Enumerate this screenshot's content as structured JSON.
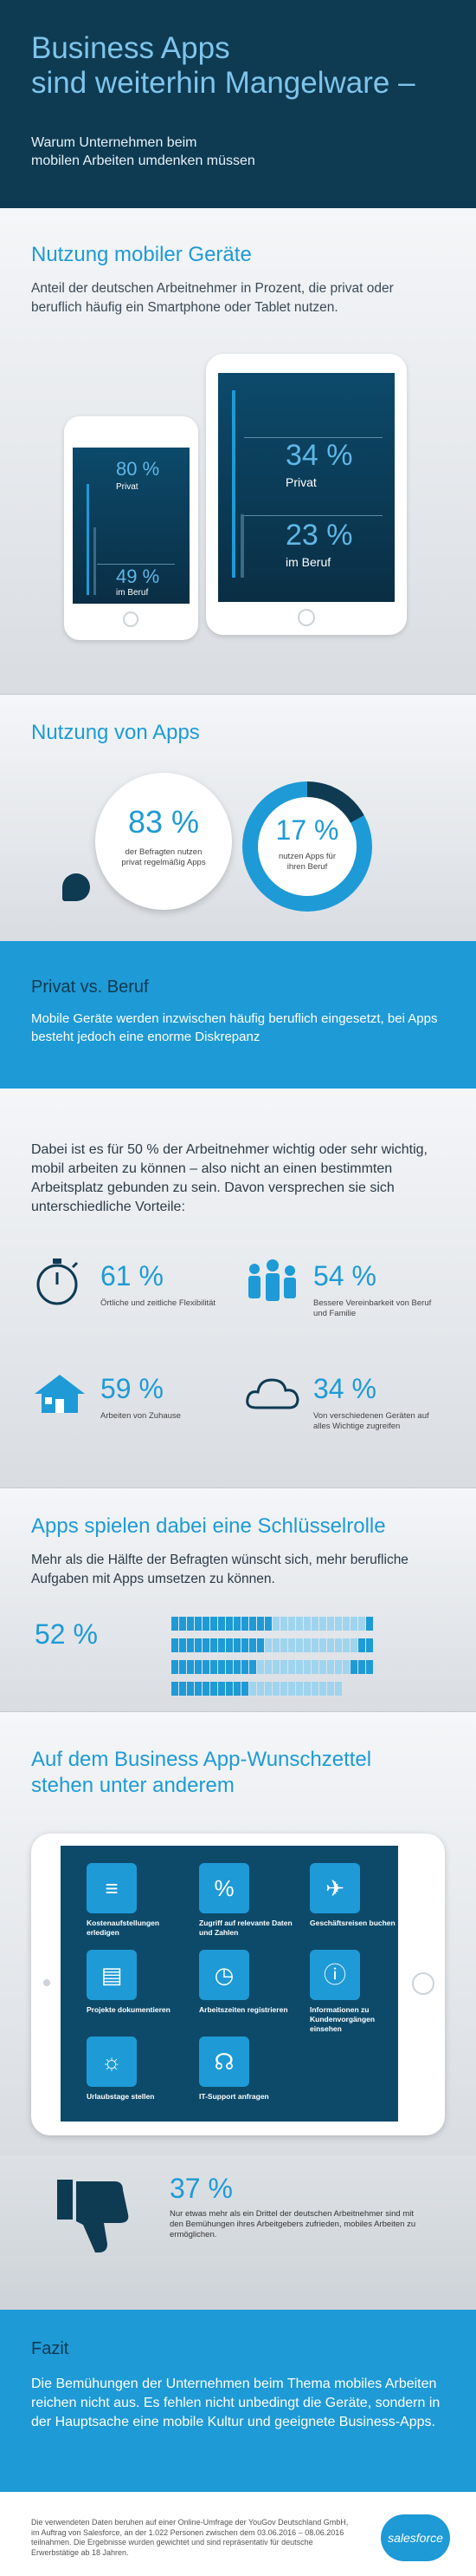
{
  "header": {
    "title_line1": "Business Apps",
    "title_line2": "sind weiterhin Mangelware –",
    "subtitle_line1": "Warum Unternehmen beim",
    "subtitle_line2": "mobilen Arbeiten umdenken müssen"
  },
  "devices": {
    "title": "Nutzung mobiler Geräte",
    "intro": "Anteil der deutschen Arbeitnehmer in Prozent, die privat oder beruflich häufig ein Smartphone oder Tablet nutzen.",
    "smartphone": {
      "privat_value": "80 %",
      "privat_label": "Privat",
      "privat": 0.8,
      "beruf_value": "49 %",
      "beruf_label": "im Beruf",
      "beruf": 0.49
    },
    "tablet": {
      "privat_value": "34 %",
      "privat_label": "Privat",
      "privat": 0.34,
      "beruf_value": "23 %",
      "beruf_label": "im Beruf",
      "beruf": 0.23
    }
  },
  "apps": {
    "title": "Nutzung von Apps",
    "private_value": "83 %",
    "private_text": "der Befragten nutzen privat regelmäßig Apps",
    "business_value": "17 %",
    "business_text": "nutzen Apps für ihren Beruf",
    "business_fraction": 0.17
  },
  "privat": {
    "title": "Privat vs. Beruf",
    "text": "Mobile Geräte werden inzwischen häufig beruflich eingesetzt, bei Apps besteht jedoch eine enorme Diskrepanz"
  },
  "benefits": {
    "intro": "Dabei ist es für 50 % der Arbeitnehmer wichtig oder sehr wichtig, mobil arbeiten zu können – also nicht an einen bestimmten Arbeitsplatz gebunden zu sein. Davon versprechen sie sich unterschiedliche Vorteile:",
    "items": [
      {
        "value": "61 %",
        "text": "Örtliche und zeitliche Flexibilität",
        "icon": "stopwatch-icon"
      },
      {
        "value": "54 %",
        "text": "Bessere Vereinbarkeit von Beruf und Familie",
        "icon": "family-icon"
      },
      {
        "value": "59 %",
        "text": "Arbeiten von Zuhause",
        "icon": "house-icon"
      },
      {
        "value": "34 %",
        "text": "Von verschiedenen Geräten auf alles Wichtige zugreifen",
        "icon": "cloud-icon"
      }
    ]
  },
  "schluessel": {
    "title": "Apps spielen dabei eine Schlüsselrolle",
    "intro": "Mehr als die Hälfte der Befragten wünscht sich, mehr berufliche Aufgaben mit Apps umsetzen zu können.",
    "value": "52 %",
    "fraction": 0.52,
    "colors": {
      "on": "#1e9ad6",
      "off": "#9fd4ef"
    }
  },
  "wish": {
    "title_line1": "Auf dem Business App-Wunschzettel",
    "title_line2": "stehen unter anderem",
    "apps": [
      {
        "label": "Kostenaufstellungen erledigen",
        "icon": "document-icon",
        "glyph": "≡"
      },
      {
        "label": "Zugriff auf relevante Daten und Zahlen",
        "icon": "chart-icon",
        "glyph": "%"
      },
      {
        "label": "Geschäftsreisen buchen",
        "icon": "ticket-icon",
        "glyph": "✈"
      },
      {
        "label": "Projekte dokumentieren",
        "icon": "files-icon",
        "glyph": "▤"
      },
      {
        "label": "Arbeitszeiten registrieren",
        "icon": "clock-icon",
        "glyph": "◷"
      },
      {
        "label": "Informationen zu Kundenvorgängen einsehen",
        "icon": "info-icon",
        "glyph": "ⓘ"
      },
      {
        "label": "Urlaubstage stellen",
        "icon": "calendar-icon",
        "glyph": "☼"
      },
      {
        "label": "IT-Support anfragen",
        "icon": "headset-icon",
        "glyph": "☊"
      }
    ]
  },
  "thumb": {
    "value": "37 %",
    "text": "Nur etwas mehr als ein Drittel der deutschen Arbeitnehmer sind mit den Bemühungen ihres Arbeitgebers zufrieden, mobiles Arbeiten zu ermöglichen."
  },
  "fazit": {
    "title": "Fazit",
    "text": "Die Bemühungen der Unternehmen beim Thema mobiles Arbeiten reichen nicht aus. Es fehlen nicht unbedingt die Geräte, sondern in der Hauptsache eine mobile Kultur und geeignete Business-Apps."
  },
  "footer": {
    "text": "Die verwendeten Daten beruhen auf einer Online-Umfrage der YouGov Deutschland GmbH, im Auftrag von Salesforce, an der 1.022 Personen zwischen dem 03.06.2016 – 08.06.2016 teilnahmen. Die Ergebnisse wurden gewichtet und sind repräsentativ für deutsche Erwerbstätige ab 18 Jahren.",
    "logo": "salesforce"
  }
}
